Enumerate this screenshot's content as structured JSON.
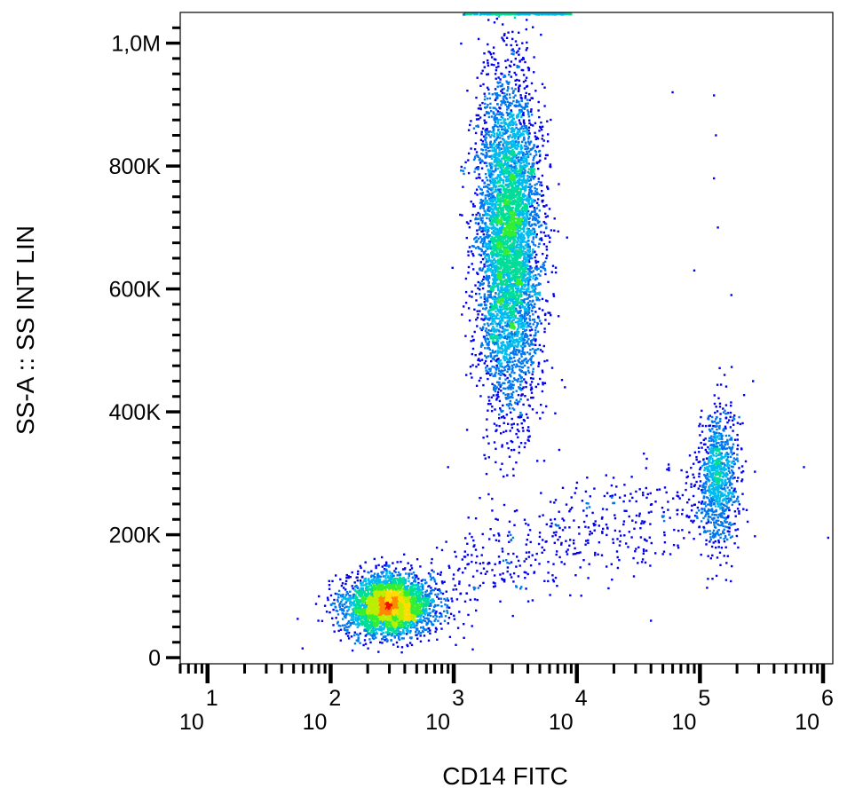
{
  "chart_data": {
    "type": "scatter",
    "subtype": "flow-cytometry-density-dot-plot",
    "xlabel": "CD14 FITC",
    "ylabel": "SS-A :: SS INT LIN",
    "x_scale": "log",
    "xlim": [
      6,
      1200000
    ],
    "y_scale": "linear",
    "ylim": [
      -10000,
      1050000
    ],
    "grid": false,
    "legend": "none",
    "x_ticks": [
      {
        "value": 10,
        "base": "10",
        "exp": "1"
      },
      {
        "value": 100,
        "base": "10",
        "exp": "2"
      },
      {
        "value": 1000,
        "base": "10",
        "exp": "3"
      },
      {
        "value": 10000,
        "base": "10",
        "exp": "4"
      },
      {
        "value": 100000,
        "base": "10",
        "exp": "5"
      },
      {
        "value": 1000000,
        "base": "10",
        "exp": "6"
      }
    ],
    "y_ticks": [
      {
        "value": 0,
        "label": "0"
      },
      {
        "value": 200000,
        "label": "200K"
      },
      {
        "value": 400000,
        "label": "400K"
      },
      {
        "value": 600000,
        "label": "600K"
      },
      {
        "value": 800000,
        "label": "800K"
      },
      {
        "value": 1000000,
        "label": "1,0M"
      }
    ],
    "density_colors": [
      "#0000ee",
      "#0077ee",
      "#00bbee",
      "#00dd99",
      "#33ee33",
      "#bbee00",
      "#ffdd00",
      "#ff8800",
      "#ee1100"
    ],
    "populations": [
      {
        "id": "lymphocytes",
        "x_center": 300,
        "y_center": 85000,
        "x_spread_decades": 0.18,
        "y_spread": 25000,
        "events": 3200
      },
      {
        "id": "granulocytes",
        "x_center": 2800,
        "y_center": 680000,
        "x_spread_decades": 0.13,
        "y_spread": 130000,
        "events": 5200
      },
      {
        "id": "monocytes",
        "x_center": 140000,
        "y_center": 290000,
        "x_spread_decades": 0.08,
        "y_spread": 60000,
        "events": 900
      },
      {
        "id": "bridge-events",
        "x_center": 15000,
        "y_center": 200000,
        "x_spread_decades": 0.55,
        "y_spread": 45000,
        "events": 500
      }
    ],
    "sparse_events": [
      {
        "x": 60000,
        "y": 920000
      },
      {
        "x": 130000,
        "y": 915000
      },
      {
        "x": 135000,
        "y": 850000
      },
      {
        "x": 130000,
        "y": 780000
      },
      {
        "x": 140000,
        "y": 700000
      },
      {
        "x": 90000,
        "y": 630000
      },
      {
        "x": 180000,
        "y": 590000
      },
      {
        "x": 270000,
        "y": 450000
      },
      {
        "x": 700000,
        "y": 310000
      },
      {
        "x": 1100000,
        "y": 195000
      },
      {
        "x": 40000,
        "y": 60000
      },
      {
        "x": 8000,
        "y": 440000
      },
      {
        "x": 900,
        "y": 310000
      }
    ],
    "saturated_top_row": {
      "x_min": 1200,
      "x_max": 9000,
      "y": 1050000
    }
  }
}
